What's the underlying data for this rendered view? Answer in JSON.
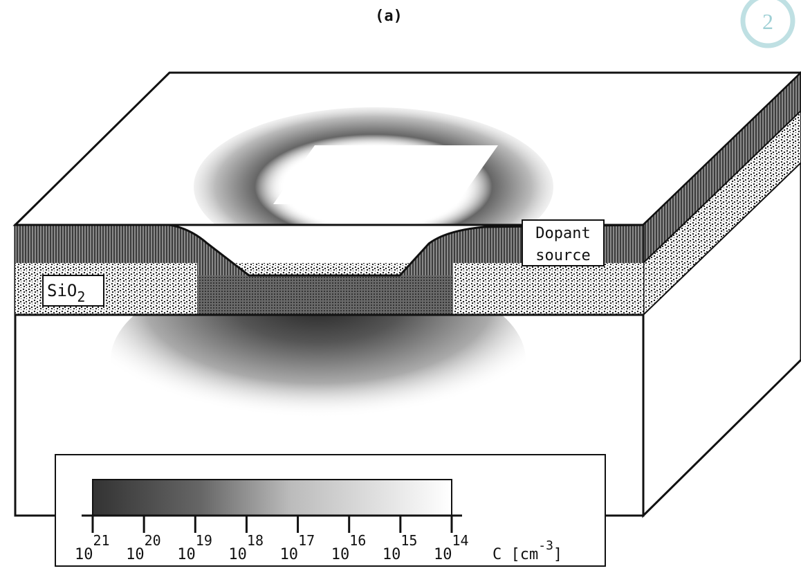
{
  "title": "(a)",
  "badge": "2",
  "labels": {
    "dopant_source": [
      "Dopant",
      "source"
    ],
    "oxide": {
      "text": "SiO",
      "sub": "2"
    }
  },
  "colorbar": {
    "ticks": [
      {
        "base": "10",
        "exp": "21"
      },
      {
        "base": "10",
        "exp": "20"
      },
      {
        "base": "10",
        "exp": "19"
      },
      {
        "base": "10",
        "exp": "18"
      },
      {
        "base": "10",
        "exp": "17"
      },
      {
        "base": "10",
        "exp": "16"
      },
      {
        "base": "10",
        "exp": "15"
      },
      {
        "base": "10",
        "exp": "14"
      }
    ],
    "unit": {
      "text": "C [cm",
      "sup": "-3",
      "post": "]"
    }
  }
}
